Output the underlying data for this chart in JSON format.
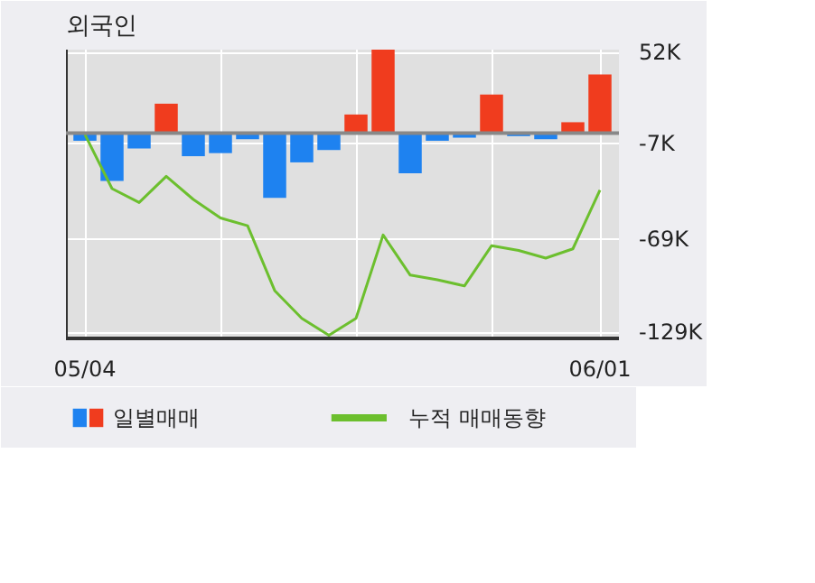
{
  "chart_data": {
    "type": "bar",
    "title": "외국인",
    "categories": [
      "05/04",
      null,
      null,
      null,
      null,
      null,
      null,
      null,
      null,
      null,
      null,
      null,
      null,
      null,
      null,
      null,
      null,
      null,
      null,
      "06/01"
    ],
    "series": [
      {
        "name": "일별매매",
        "colors": [
          "#1e82f0",
          "#1e82f0",
          "#1e82f0",
          "#f03c1e",
          "#1e82f0",
          "#1e82f0",
          "#1e82f0",
          "#1e82f0",
          "#1e82f0",
          "#1e82f0",
          "#f03c1e",
          "#f03c1e",
          "#1e82f0",
          "#1e82f0",
          "#1e82f0",
          "#f03c1e",
          "#1e82f0",
          "#1e82f0",
          "#f03c1e",
          "#f03c1e"
        ],
        "values": [
          -5,
          -31,
          -10,
          19,
          -15,
          -13,
          -4,
          -42,
          -19,
          -11,
          12,
          54,
          -26,
          -5,
          -3,
          25,
          -2,
          -4,
          7,
          38
        ]
      },
      {
        "type": "line",
        "name": "누적 매매동향",
        "color": "#6cbf2e",
        "values": [
          -1,
          -36,
          -45,
          -28,
          -43,
          -55,
          -60,
          -102,
          -120,
          -131,
          -120,
          -66,
          -92,
          -95,
          -99,
          -73,
          -76,
          -81,
          -75,
          -37
        ]
      }
    ],
    "ylim": [
      -133,
      54
    ],
    "yticks": [
      {
        "value": 52,
        "label": "52K"
      },
      {
        "value": -7,
        "label": "-7K"
      },
      {
        "value": -69,
        "label": "-69K"
      },
      {
        "value": -129,
        "label": "-129K"
      }
    ],
    "grid": true,
    "legend": "bottom"
  }
}
